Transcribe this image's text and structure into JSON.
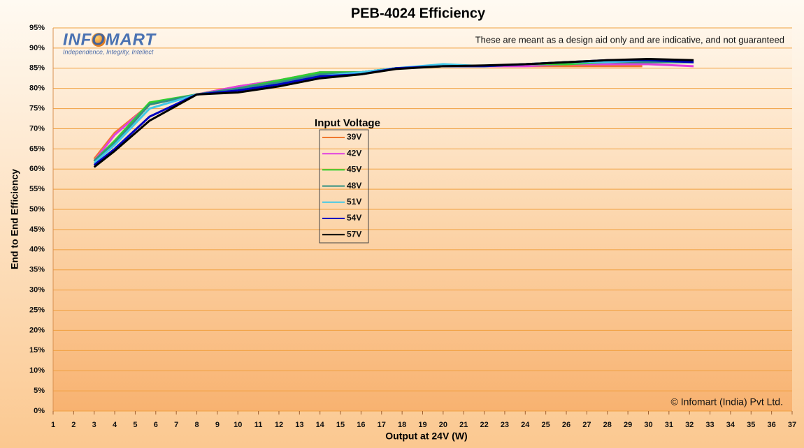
{
  "chart_data": {
    "type": "line",
    "title": "PEB-4024 Efficiency",
    "note": "These are meant as a design aid only and are indicative, and not guaranteed",
    "copyright": "© Infomart (India) Pvt Ltd.",
    "logo": {
      "name": "INFOMART",
      "tagline": "Independence, Integrity, Intellect"
    },
    "xlabel": "Output at 24V (W)",
    "ylabel": "End to End Efficiency",
    "legend_title": "Input Voltage",
    "legend_position": "center",
    "grid": true,
    "xlim": [
      1,
      37
    ],
    "xticks": [
      1,
      2,
      3,
      4,
      5,
      6,
      7,
      8,
      9,
      10,
      11,
      12,
      13,
      14,
      15,
      16,
      17,
      18,
      19,
      20,
      21,
      22,
      23,
      24,
      25,
      26,
      27,
      28,
      29,
      30,
      31,
      32,
      33,
      34,
      35,
      36,
      37
    ],
    "ylim": [
      0,
      95
    ],
    "yticks": [
      {
        "value": 0,
        "label": "0%"
      },
      {
        "value": 5,
        "label": "5%"
      },
      {
        "value": 10,
        "label": "10%"
      },
      {
        "value": 15,
        "label": "15%"
      },
      {
        "value": 20,
        "label": "20%"
      },
      {
        "value": 25,
        "label": "25%"
      },
      {
        "value": 30,
        "label": "30%"
      },
      {
        "value": 35,
        "label": "35%"
      },
      {
        "value": 40,
        "label": "40%"
      },
      {
        "value": 45,
        "label": "45%"
      },
      {
        "value": 50,
        "label": "50%"
      },
      {
        "value": 55,
        "label": "55%"
      },
      {
        "value": 60,
        "label": "60%"
      },
      {
        "value": 65,
        "label": "65%"
      },
      {
        "value": 70,
        "label": "70%"
      },
      {
        "value": 75,
        "label": "75%"
      },
      {
        "value": 80,
        "label": "80%"
      },
      {
        "value": 85,
        "label": "85%"
      },
      {
        "value": 90,
        "label": "90%"
      },
      {
        "value": 95,
        "label": "95%"
      }
    ],
    "series": [
      {
        "name": "39V",
        "color": "#f07830",
        "x": [
          3,
          4,
          5.7,
          8,
          10,
          12,
          14,
          16,
          17.7,
          20,
          22,
          24,
          26,
          28,
          29.7
        ],
        "values": [
          62.5,
          69,
          76,
          78.5,
          80.5,
          82,
          84,
          84,
          85,
          85.5,
          85.5,
          85.5,
          85.5,
          85.5,
          85.5
        ]
      },
      {
        "name": "42V",
        "color": "#e040e0",
        "x": [
          3,
          4,
          5.7,
          8,
          10,
          12,
          14,
          16,
          17.7,
          20,
          22,
          24,
          26,
          28,
          30,
          32.2
        ],
        "values": [
          62,
          68.5,
          76,
          78.5,
          80.5,
          82,
          84,
          84,
          85,
          85.5,
          85.5,
          85.5,
          86,
          86,
          86,
          85.5
        ]
      },
      {
        "name": "45V",
        "color": "#30d030",
        "x": [
          3,
          4,
          5.7,
          8,
          10,
          12,
          14,
          16,
          17.7,
          20,
          22,
          24,
          26,
          28,
          30,
          32.2
        ],
        "values": [
          62,
          67,
          76.5,
          78.5,
          80,
          82,
          84,
          84,
          85,
          85.5,
          85.5,
          86,
          86,
          86.5,
          86.5,
          86.5
        ]
      },
      {
        "name": "48V",
        "color": "#309080",
        "x": [
          3,
          4,
          5.7,
          8,
          10,
          12,
          14,
          16,
          17.7,
          20,
          22,
          24,
          26,
          28,
          30,
          32.2
        ],
        "values": [
          62,
          66.5,
          76,
          78.5,
          80,
          81.5,
          83.5,
          84,
          85,
          85.5,
          85.5,
          86,
          86.5,
          86.5,
          86.5,
          86.5
        ]
      },
      {
        "name": "51V",
        "color": "#40c8e8",
        "x": [
          3,
          4,
          5.7,
          8,
          10,
          12,
          14,
          16,
          17.7,
          20,
          22,
          24,
          26,
          28,
          30,
          32.2
        ],
        "values": [
          61.5,
          66,
          75,
          78.5,
          79.5,
          81,
          83,
          84,
          85,
          86,
          85.5,
          86,
          86.5,
          86.5,
          87,
          86.5
        ]
      },
      {
        "name": "54V",
        "color": "#0000c0",
        "x": [
          3,
          4,
          5.7,
          8,
          10,
          12,
          14,
          16,
          17.7,
          20,
          22,
          24,
          26,
          28,
          30,
          32.2
        ],
        "values": [
          61,
          65,
          73,
          78.5,
          79.5,
          81,
          83,
          83.5,
          85,
          85.5,
          85.5,
          86,
          86.5,
          87,
          87,
          86.5
        ]
      },
      {
        "name": "57V",
        "color": "#000000",
        "x": [
          3,
          4,
          5.7,
          8,
          10,
          12,
          14,
          16,
          17.7,
          20,
          22,
          24,
          26,
          28,
          30,
          32.2
        ],
        "values": [
          60.5,
          64.5,
          72,
          78.5,
          79,
          80.5,
          82.5,
          83.5,
          84.8,
          85.5,
          85.7,
          86,
          86.5,
          87,
          87.3,
          87
        ]
      }
    ]
  }
}
